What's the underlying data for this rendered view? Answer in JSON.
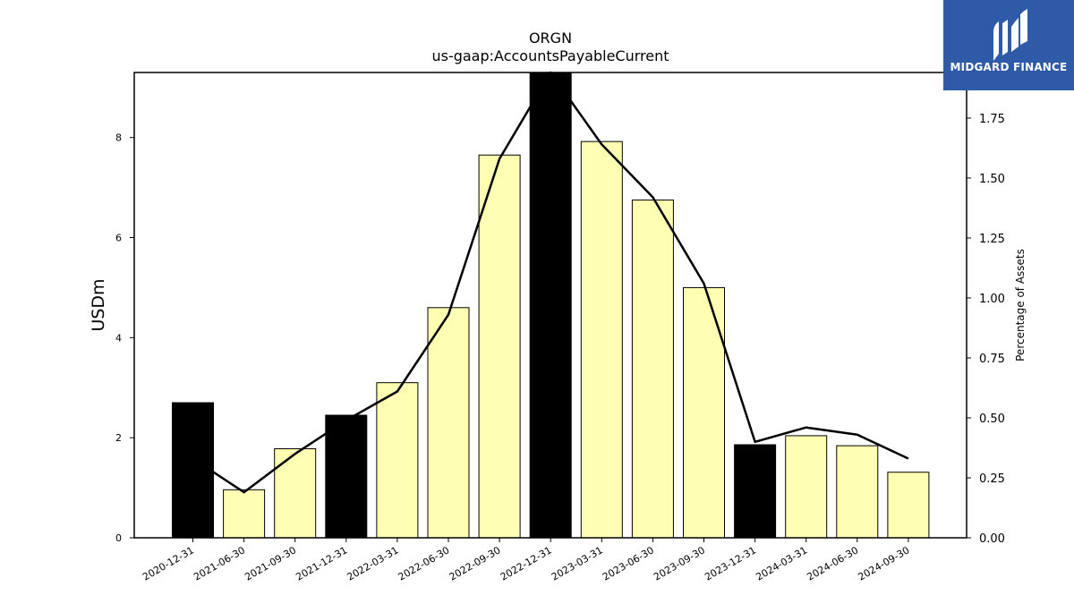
{
  "logo": {
    "text": "MIDGARD FINANCE",
    "background": "#2f5aa8"
  },
  "chart_data": {
    "type": "bar",
    "title": "ORGN",
    "subtitle": "us-gaap:AccountsPayableCurrent",
    "ylabel": "USDm",
    "y2label": "Percentage of Assets",
    "categories": [
      "2020-12-31",
      "2021-06-30",
      "2021-09-30",
      "2021-12-31",
      "2022-03-31",
      "2022-06-30",
      "2022-09-30",
      "2022-12-31",
      "2023-03-31",
      "2023-06-30",
      "2023-09-30",
      "2023-12-31",
      "2024-03-31",
      "2024-06-30",
      "2024-09-30"
    ],
    "series": [
      {
        "type": "bar",
        "values": [
          2.7,
          0.96,
          1.78,
          2.45,
          3.1,
          4.6,
          7.65,
          9.3,
          7.92,
          6.75,
          5.0,
          1.86,
          2.04,
          1.84,
          1.31
        ]
      },
      {
        "type": "line",
        "axis": "right",
        "values": [
          0.33,
          0.19,
          0.35,
          0.49,
          0.61,
          0.93,
          1.58,
          1.96,
          1.64,
          1.42,
          1.06,
          0.4,
          0.46,
          0.43,
          0.33
        ]
      }
    ],
    "annual_periods": [
      "2020-12-31",
      "2021-12-31",
      "2022-12-31",
      "2023-12-31"
    ],
    "colors": {
      "annual": "#000000",
      "quarterly": "#ffffb3",
      "line": "#000000"
    },
    "ylim": [
      0,
      9.3
    ],
    "y2lim": [
      0,
      1.94
    ],
    "yticks": [
      0,
      2,
      4,
      6,
      8
    ],
    "y2ticks": [
      "0.00",
      "0.25",
      "0.50",
      "0.75",
      "1.00",
      "1.25",
      "1.50",
      "1.75"
    ],
    "grid": false,
    "legend": "none"
  }
}
